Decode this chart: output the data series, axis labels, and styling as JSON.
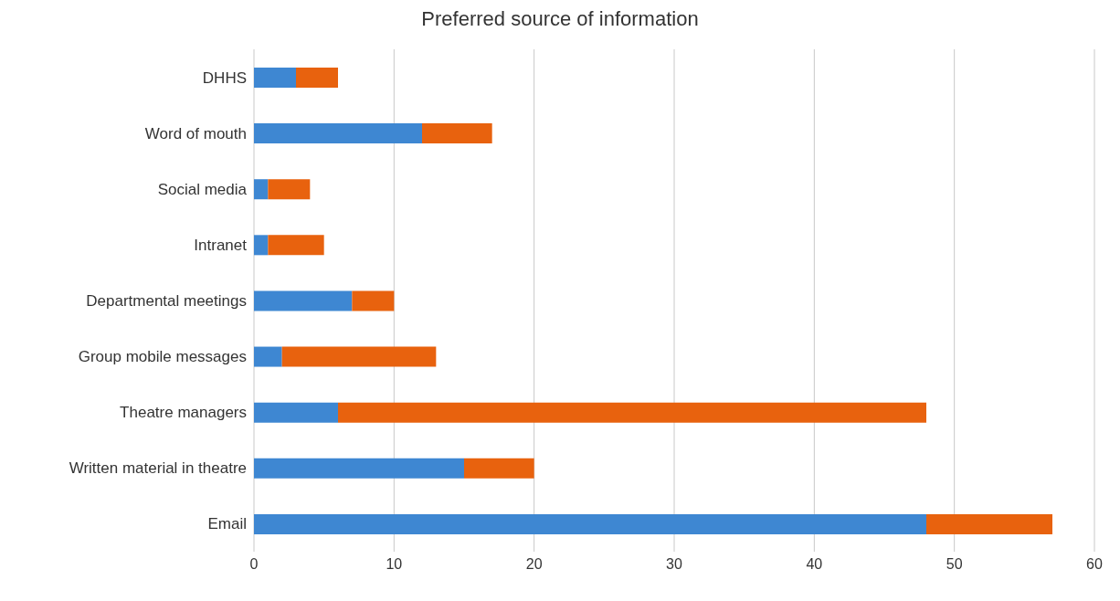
{
  "chart_data": {
    "type": "bar",
    "orientation": "horizontal",
    "stacked": true,
    "title": "Preferred source of information",
    "categories": [
      "DHHS",
      "Word of mouth",
      "Social media",
      "Intranet",
      "Departmental meetings",
      "Group mobile messages",
      "Theatre managers",
      "Written material in theatre",
      "Email"
    ],
    "series": [
      {
        "color": "#3e87d2",
        "values": [
          3,
          12,
          1,
          1,
          7,
          2,
          6,
          15,
          48
        ]
      },
      {
        "color": "#e8620e",
        "values": [
          3,
          5,
          3,
          4,
          3,
          11,
          42,
          5,
          9
        ]
      }
    ],
    "xlim": [
      0,
      60
    ],
    "xticks": [
      0,
      10,
      20,
      30,
      40,
      50,
      60
    ],
    "grid": "x",
    "legend": false
  }
}
